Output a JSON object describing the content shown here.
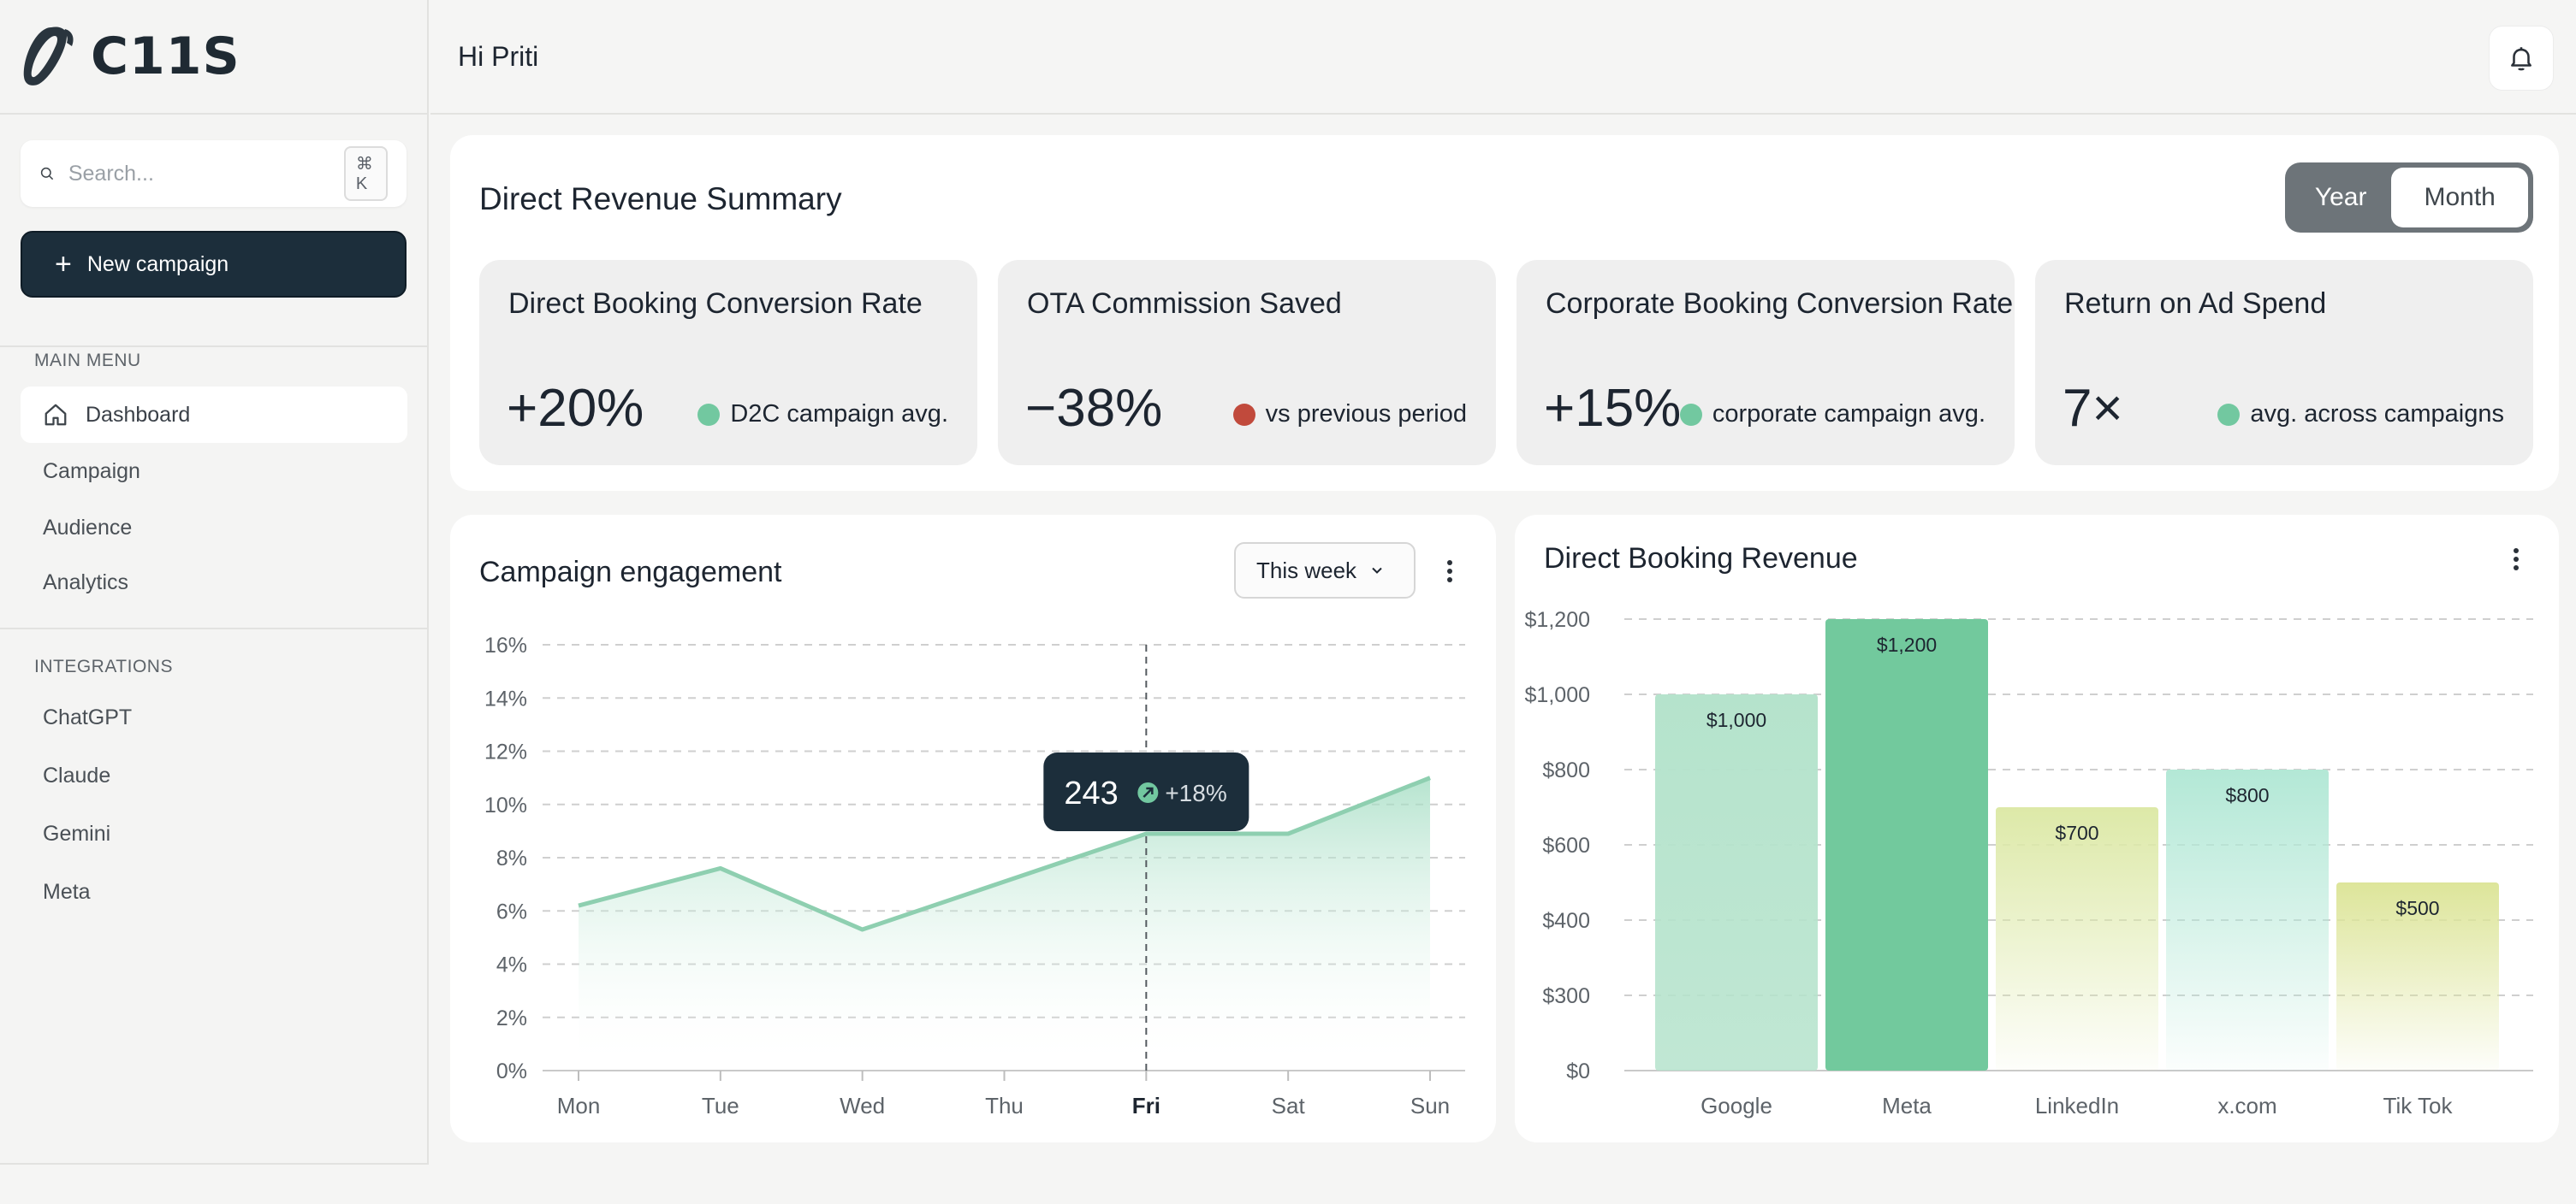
{
  "app": {
    "brand": "C11S"
  },
  "header": {
    "greeting": "Hi Priti"
  },
  "sidebar": {
    "search": {
      "placeholder": "Search...",
      "shortcut": "⌘ K"
    },
    "new_campaign_label": "New campaign",
    "main_menu_label": "MAIN MENU",
    "main_menu": [
      "Dashboard",
      "Campaign",
      "Audience",
      "Analytics"
    ],
    "integrations_label": "INTEGRATIONS",
    "integrations": [
      "ChatGPT",
      "Claude",
      "Gemini",
      "Meta"
    ]
  },
  "summary": {
    "title": "Direct Revenue Summary",
    "toggle": {
      "options": [
        "Year",
        "Month"
      ],
      "selected": "Month"
    },
    "kpis": [
      {
        "title": "Direct Booking Conversion Rate",
        "value": "+20%",
        "note": "D2C campaign avg.",
        "dot_color": "#72c8a0"
      },
      {
        "title": "OTA Commission Saved",
        "value": "−38%",
        "note": "vs previous period",
        "dot_color": "#c14a3c"
      },
      {
        "title": "Corporate Booking Conversion Rate",
        "value": "+15%",
        "note": "corporate campaign avg.",
        "dot_color": "#72c8a0"
      },
      {
        "title": "Return on Ad Spend",
        "value": "7×",
        "note": "avg. across campaigns",
        "dot_color": "#72c8a0"
      }
    ]
  },
  "engagement": {
    "title": "Campaign engagement",
    "period": "This week",
    "tooltip": {
      "value": "243",
      "change": "+18%"
    }
  },
  "revenue": {
    "title": "Direct Booking Revenue"
  },
  "chart_data": [
    {
      "type": "area",
      "title": "Campaign engagement",
      "categories": [
        "Mon",
        "Tue",
        "Wed",
        "Thu",
        "Fri",
        "Sat",
        "Sun"
      ],
      "values": [
        6.2,
        7.6,
        5.3,
        7.1,
        8.9,
        8.9,
        11.0
      ],
      "y_ticks": [
        "0%",
        "2%",
        "4%",
        "6%",
        "8%",
        "10%",
        "12%",
        "14%",
        "16%"
      ],
      "ylim": [
        0,
        16
      ],
      "highlight_category": "Fri",
      "line_color": "#8ecfb0",
      "grid": true
    },
    {
      "type": "bar",
      "title": "Direct Booking Revenue",
      "categories": [
        "Google",
        "Meta",
        "LinkedIn",
        "x.com",
        "Tik Tok"
      ],
      "values": [
        1000,
        1200,
        700,
        800,
        500
      ],
      "data_labels": [
        "$1,000",
        "$1,200",
        "$700",
        "$800",
        "$500"
      ],
      "y_ticks": [
        "$0",
        "$300",
        "$400",
        "$600",
        "$800",
        "$1,000",
        "$1,200"
      ],
      "bar_colors": [
        "#b5e3cc",
        "#72c99d",
        "#dde9a8",
        "#b3e8d6",
        "#dde59a"
      ],
      "highlight_category": "Meta",
      "grid": true
    }
  ]
}
